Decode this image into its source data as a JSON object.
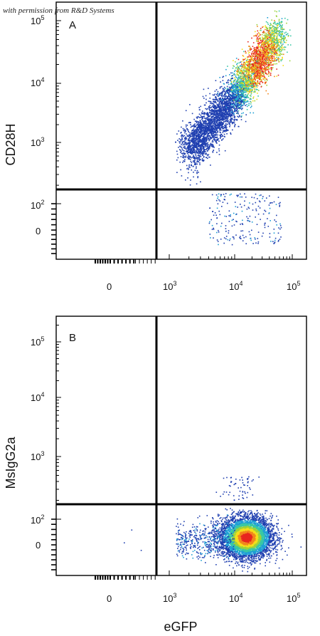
{
  "credit": "with permission from R&D Systems",
  "colors": {
    "density": [
      "#1f3fb0",
      "#1f9fd5",
      "#39c7a5",
      "#9bd23c",
      "#f5de1a",
      "#f2871c",
      "#e8261f"
    ],
    "gate_line": "#000000",
    "frame": "#000000"
  },
  "chart_data": [
    {
      "type": "scatter",
      "subtype": "flow-cytometry density plot",
      "panel": "A",
      "xlabel": "eGFP",
      "ylabel": "CD28H",
      "x_scale": "biexponential",
      "y_scale": "biexponential",
      "xticks": [
        {
          "label": "0",
          "value": 0
        },
        {
          "label": "10",
          "exp": "3",
          "value": 1000
        },
        {
          "label": "10",
          "exp": "4",
          "value": 10000
        },
        {
          "label": "10",
          "exp": "5",
          "value": 100000
        }
      ],
      "yticks": [
        {
          "label": "0",
          "value": 0
        },
        {
          "label": "10",
          "exp": "2",
          "value": 100
        },
        {
          "label": "10",
          "exp": "3",
          "value": 1000
        },
        {
          "label": "10",
          "exp": "4",
          "value": 10000
        },
        {
          "label": "10",
          "exp": "5",
          "value": 100000
        }
      ],
      "quadrant_gate": {
        "x": 700,
        "y": 170
      },
      "populations": [
        {
          "region": "upper-right",
          "x_center": 15000,
          "y_center": 20000,
          "shape": "diagonal band",
          "peak_x": 22000,
          "peak_y": 45000,
          "density": "high"
        },
        {
          "region": "lower-right",
          "x_center": 15000,
          "y_center": 0,
          "shape": "sparse scatter",
          "density": "low"
        }
      ]
    },
    {
      "type": "scatter",
      "subtype": "flow-cytometry density plot",
      "panel": "B",
      "xlabel": "eGFP",
      "ylabel": "MsIgG2a",
      "x_scale": "biexponential",
      "y_scale": "biexponential",
      "xticks": [
        {
          "label": "0",
          "value": 0
        },
        {
          "label": "10",
          "exp": "3",
          "value": 1000
        },
        {
          "label": "10",
          "exp": "4",
          "value": 10000
        },
        {
          "label": "10",
          "exp": "5",
          "value": 100000
        }
      ],
      "yticks": [
        {
          "label": "0",
          "value": 0
        },
        {
          "label": "10",
          "exp": "2",
          "value": 100
        },
        {
          "label": "10",
          "exp": "3",
          "value": 1000
        },
        {
          "label": "10",
          "exp": "4",
          "value": 10000
        },
        {
          "label": "10",
          "exp": "5",
          "value": 100000
        }
      ],
      "quadrant_gate": {
        "x": 700,
        "y": 170
      },
      "populations": [
        {
          "region": "lower-right",
          "x_center": 16000,
          "y_center": 30,
          "shape": "horizontal ellipse",
          "peak_x": 16000,
          "peak_y": 30,
          "density": "high"
        },
        {
          "region": "upper-right",
          "x_center": 18000,
          "y_center": 300,
          "shape": "sparse scatter",
          "density": "very low"
        }
      ]
    }
  ]
}
